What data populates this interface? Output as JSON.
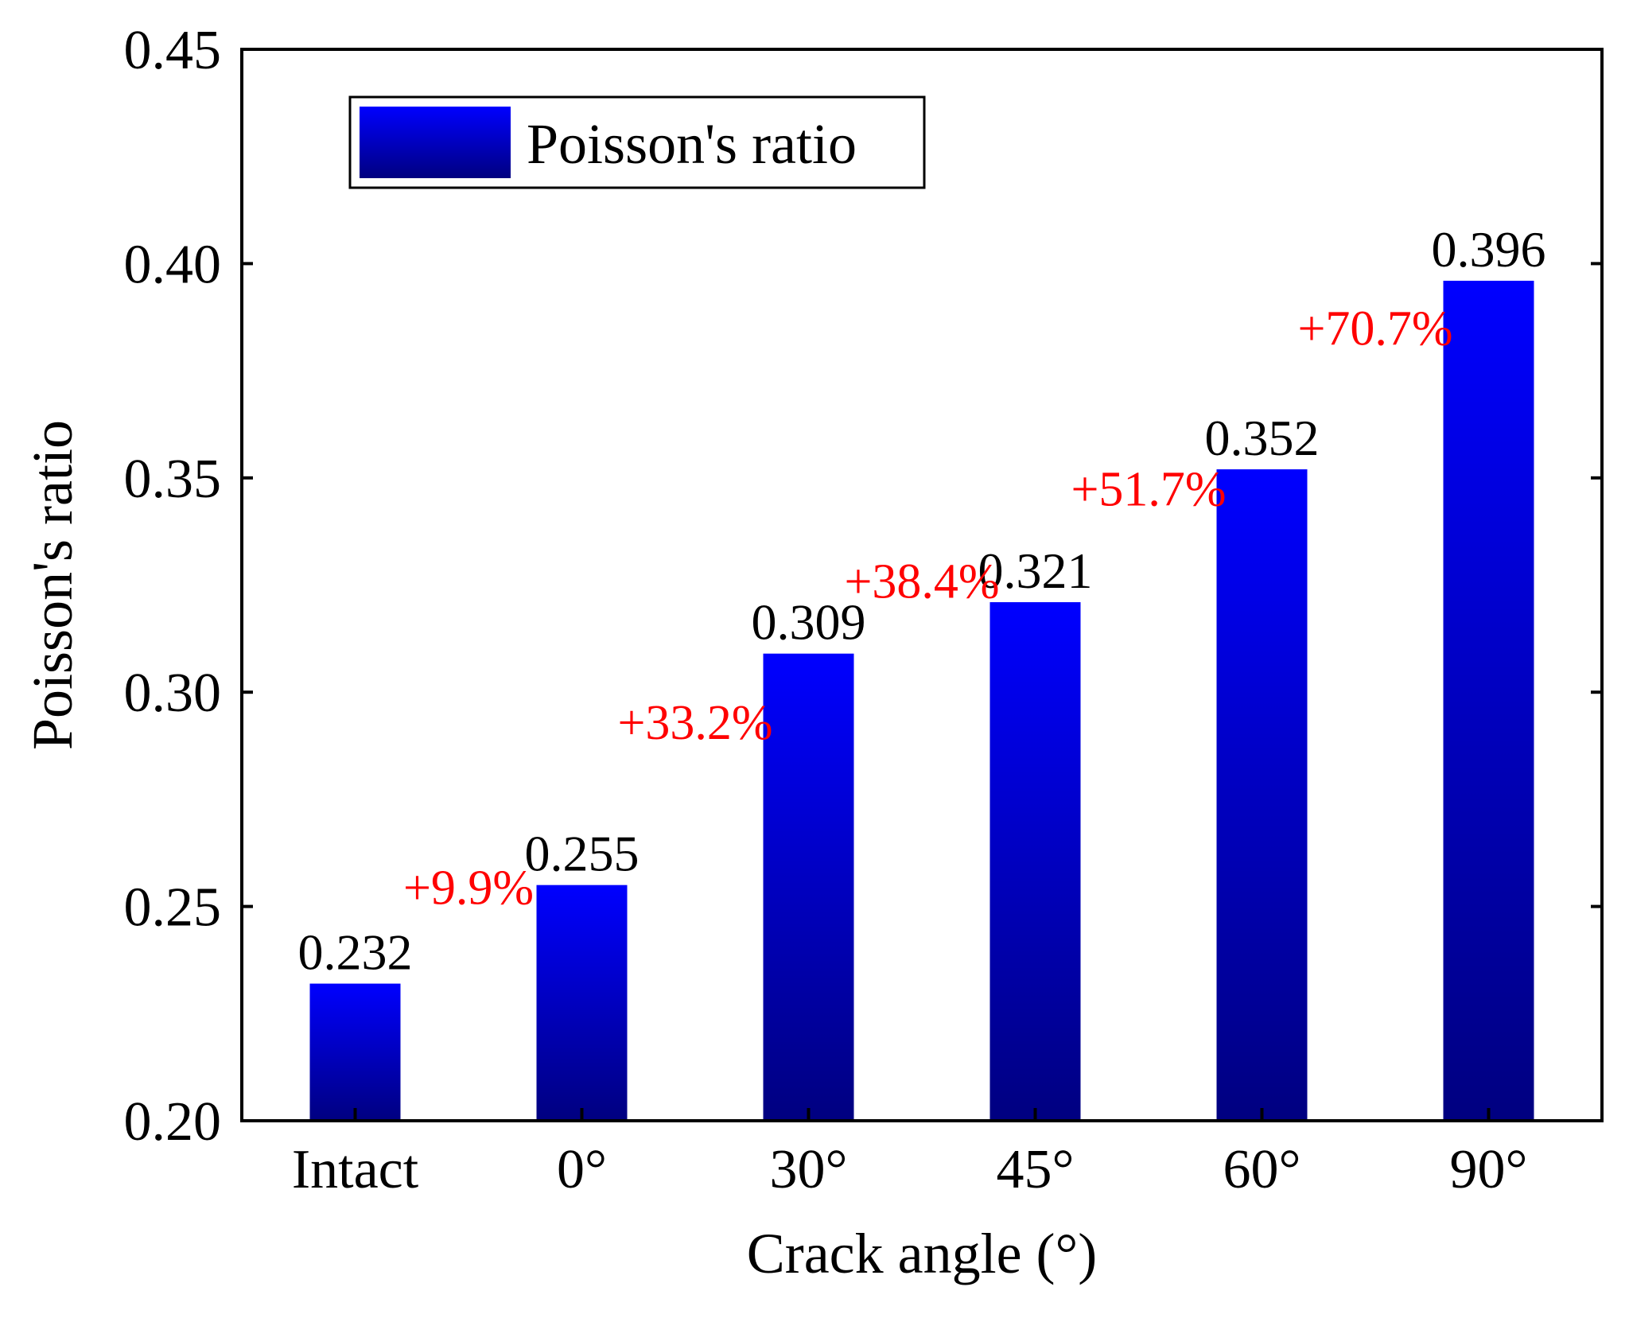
{
  "chart_data": {
    "type": "bar",
    "title": "",
    "xlabel": "Crack angle (°)",
    "ylabel": "Poisson's ratio",
    "categories": [
      "Intact",
      "0°",
      "30°",
      "45°",
      "60°",
      "90°"
    ],
    "series": [
      {
        "name": "Poisson's ratio",
        "values": [
          0.232,
          0.255,
          0.309,
          0.321,
          0.352,
          0.396
        ]
      }
    ],
    "value_labels": [
      "0.232",
      "0.255",
      "0.309",
      "0.321",
      "0.352",
      "0.396"
    ],
    "change_labels": [
      "",
      "+9.9%",
      "+33.2%",
      "+38.4%",
      "+51.7%",
      "+70.7%"
    ],
    "ylim": [
      0.2,
      0.45
    ],
    "yticks": [
      0.2,
      0.25,
      0.3,
      0.35,
      0.4,
      0.45
    ],
    "ytick_labels": [
      "0.20",
      "0.25",
      "0.30",
      "0.35",
      "0.40",
      "0.45"
    ],
    "legend": {
      "label": "Poisson's ratio",
      "position": "top-left"
    },
    "grid": false,
    "colors": {
      "bar_top": "#0000ff",
      "bar_bottom": "#000080",
      "change_label": "#ff0000",
      "axis": "#000000"
    }
  }
}
